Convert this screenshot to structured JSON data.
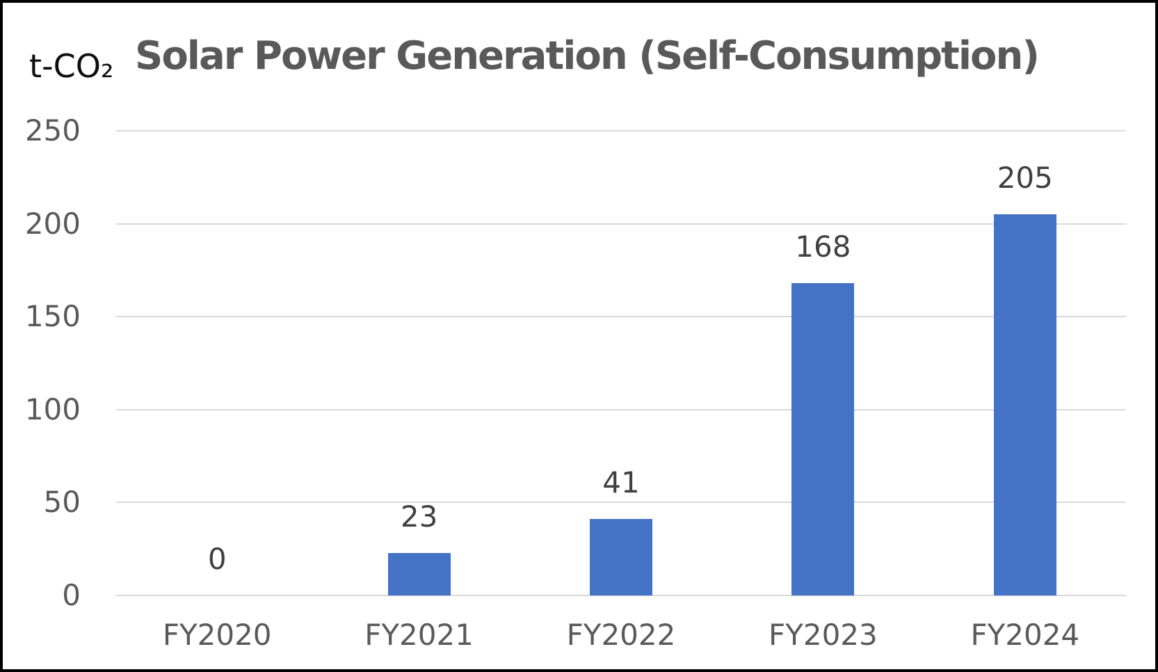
{
  "header": {
    "title": "Solar Power Generation (Self-Consumption)",
    "unit_label": "t-CO₂"
  },
  "chart_data": {
    "type": "bar",
    "title": "Solar Power Generation (Self-Consumption)",
    "ylabel": "t-CO₂",
    "xlabel": "",
    "categories": [
      "FY2020",
      "FY2021",
      "FY2022",
      "FY2023",
      "FY2024"
    ],
    "values": [
      0,
      23,
      41,
      168,
      205
    ],
    "data_labels": [
      "0",
      "23",
      "41",
      "168",
      "205"
    ],
    "ylim": [
      0,
      250
    ],
    "yticks": [
      0,
      50,
      100,
      150,
      200,
      250
    ],
    "grid": true,
    "legend_position": "none",
    "colors": {
      "bar": "#4472C4",
      "gridline": "#D9D9D9",
      "axis_text": "#595959",
      "data_label_text": "#404040",
      "title_text": "#595959",
      "unit_text": "#0D0D0D",
      "frame_border": "#000000",
      "background": "#FFFFFF"
    }
  }
}
